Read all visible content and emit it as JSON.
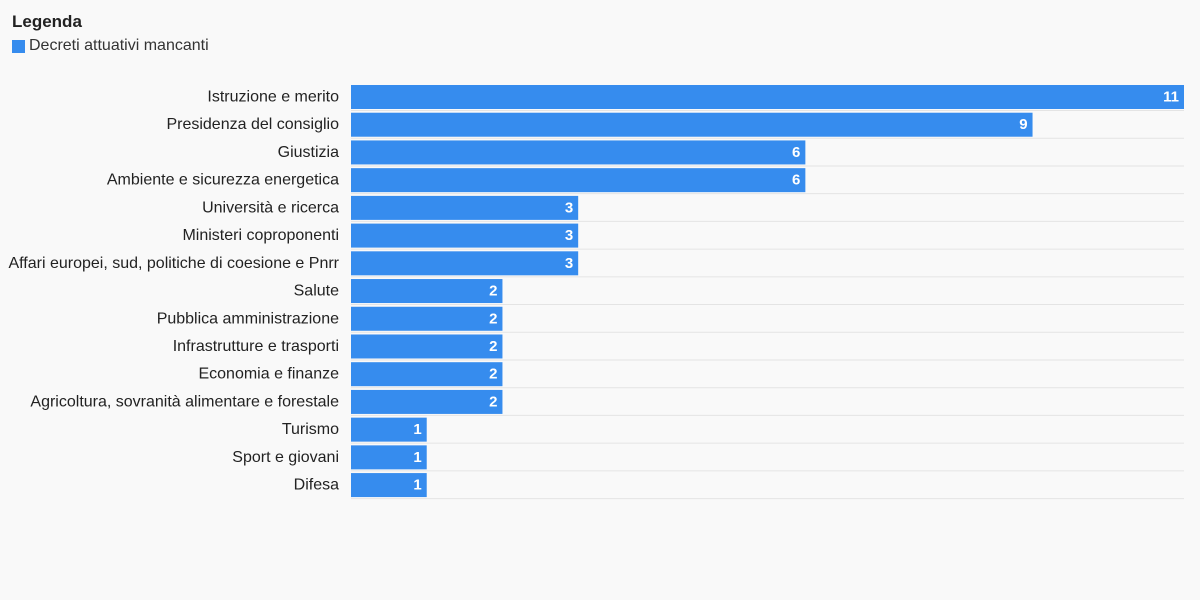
{
  "legend": {
    "title": "Legenda",
    "entries": [
      {
        "label": "Decreti attuativi mancanti",
        "color": "#368cee"
      }
    ]
  },
  "chart_data": {
    "type": "bar",
    "orientation": "horizontal",
    "title": "",
    "xlabel": "",
    "ylabel": "",
    "grid": true,
    "legend_position": "top-left",
    "xlim": [
      0,
      11
    ],
    "bar_color": "#368cee",
    "categories": [
      "Istruzione e merito",
      "Presidenza del consiglio",
      "Giustizia",
      "Ambiente e sicurezza energetica",
      "Università e ricerca",
      "Ministeri coproponenti",
      "Affari europei, sud, politiche di coesione e Pnrr",
      "Salute",
      "Pubblica amministrazione",
      "Infrastrutture e trasporti",
      "Economia e finanze",
      "Agricoltura, sovranità alimentare e forestale",
      "Turismo",
      "Sport e giovani",
      "Difesa"
    ],
    "series": [
      {
        "name": "Decreti attuativi mancanti",
        "values": [
          11,
          9,
          6,
          6,
          3,
          3,
          3,
          2,
          2,
          2,
          2,
          2,
          1,
          1,
          1
        ]
      }
    ]
  }
}
